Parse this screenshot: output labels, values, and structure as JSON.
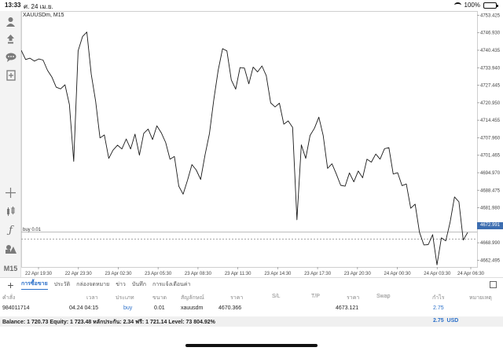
{
  "status_bar": {
    "time": "13:33",
    "date": "ศ. 24 เม.ย.",
    "battery": "100%"
  },
  "chart": {
    "symbol": "XAUUSDm, M15",
    "trade_label": "buy 0.01",
    "current_price": "4672.991"
  },
  "chart_data": {
    "type": "line",
    "x_labels": [
      "22 Apr 19:30",
      "22 Apr 23:30",
      "23 Apr 02:30",
      "23 Apr 05:30",
      "23 Apr 08:30",
      "23 Apr 11:30",
      "23 Apr 14:30",
      "23 Apr 17:30",
      "23 Apr 20:30",
      "24 Apr 00:30",
      "24 Apr 03:30",
      "24 Apr 06:30"
    ],
    "y_ticks": [
      "4753.425",
      "4746.930",
      "4740.435",
      "4733.940",
      "4727.445",
      "4720.950",
      "4714.455",
      "4707.960",
      "4701.465",
      "4694.970",
      "4688.475",
      "4681.980",
      "4675.485",
      "4668.990",
      "4662.495"
    ],
    "ylim": [
      4660,
      4755
    ],
    "trade_price": 4670.366,
    "current_price": 4672.991,
    "values": [
      4740.4,
      4737.0,
      4737.5,
      4736.4,
      4737.2,
      4736.8,
      4733.0,
      4730.5,
      4726.7,
      4726.1,
      4727.6,
      4720.3,
      4699.2,
      4740.2,
      4745.5,
      4747.2,
      4731.5,
      4721.5,
      4707.9,
      4709.0,
      4700.3,
      4703.4,
      4705.2,
      4703.8,
      4707.5,
      4703.8,
      4709.3,
      4701.5,
      4709.6,
      4711.2,
      4707.3,
      4712.4,
      4709.8,
      4706.2,
      4700.0,
      4701.0,
      4690.0,
      4687.0,
      4692.2,
      4698.0,
      4696.0,
      4692.5,
      4701.6,
      4709.5,
      4722.0,
      4733.0,
      4741.0,
      4740.2,
      4729.4,
      4726.0,
      4734.0,
      4733.8,
      4728.0,
      4734.2,
      4732.4,
      4734.6,
      4731.0,
      4720.9,
      4719.4,
      4720.8,
      4713.0,
      4714.2,
      4711.8,
      4677.5,
      4705.3,
      4700.3,
      4708.8,
      4711.5,
      4715.6,
      4708.8,
      4696.6,
      4698.3,
      4694.5,
      4690.3,
      4690.0,
      4694.9,
      4691.6,
      4695.6,
      4693.1,
      4700.0,
      4698.9,
      4701.9,
      4700.0,
      4703.9,
      4704.3,
      4694.5,
      4695.0,
      4690.2,
      4690.8,
      4681.8,
      4683.3,
      4672.9,
      4668.2,
      4668.3,
      4672.0,
      4660.8,
      4670.8,
      4669.7,
      4676.6,
      4686.0,
      4684.2,
      4670.0,
      4672.8
    ]
  },
  "tabs": [
    "การซื้อขาย",
    "ประวัติ",
    "กล่องจดหมาย",
    "ข่าว",
    "บันทึก",
    "การแจ้งเตือนค่า"
  ],
  "table": {
    "headers": {
      "order": "คำสั่ง",
      "time": "เวลา",
      "type": "ประเภท",
      "size": "ขนาด",
      "symbol": "สัญลักษณ์",
      "price": "ราคา",
      "sl": "S/L",
      "tp": "T/P",
      "price2": "ราคา",
      "swap": "Swap",
      "profit": "กำไร",
      "comment": "หมายเหตุ"
    },
    "rows": [
      {
        "order": "984011714",
        "time": "04.24 04:15",
        "type": "buy",
        "size": "0.01",
        "symbol": "xauusdm",
        "open_price": "4670.366",
        "current_price": "4673.121",
        "profit": "2.75"
      }
    ]
  },
  "balance": {
    "text": "Balance: 1 720.73 Equity: 1 723.48 หลักประกัน: 2.34 ฟรี: 1 721.14 Level: 73 804.92%",
    "profit": "2.75",
    "currency": "USD"
  }
}
